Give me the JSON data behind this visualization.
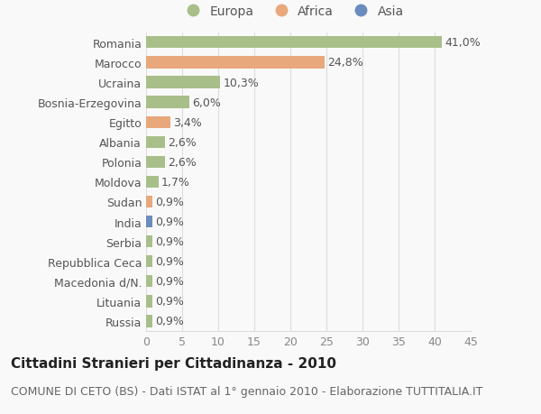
{
  "categories": [
    "Russia",
    "Lituania",
    "Macedonia d/N.",
    "Repubblica Ceca",
    "Serbia",
    "India",
    "Sudan",
    "Moldova",
    "Polonia",
    "Albania",
    "Egitto",
    "Bosnia-Erzegovina",
    "Ucraina",
    "Marocco",
    "Romania"
  ],
  "values": [
    0.9,
    0.9,
    0.9,
    0.9,
    0.9,
    0.9,
    0.9,
    1.7,
    2.6,
    2.6,
    3.4,
    6.0,
    10.3,
    24.8,
    41.0
  ],
  "labels": [
    "0,9%",
    "0,9%",
    "0,9%",
    "0,9%",
    "0,9%",
    "0,9%",
    "0,9%",
    "1,7%",
    "2,6%",
    "2,6%",
    "3,4%",
    "6,0%",
    "10,3%",
    "24,8%",
    "41,0%"
  ],
  "colors": [
    "#a8bf8a",
    "#a8bf8a",
    "#a8bf8a",
    "#a8bf8a",
    "#a8bf8a",
    "#6b8cbe",
    "#e8a87c",
    "#a8bf8a",
    "#a8bf8a",
    "#a8bf8a",
    "#e8a87c",
    "#a8bf8a",
    "#a8bf8a",
    "#e8a87c",
    "#a8bf8a"
  ],
  "legend_labels": [
    "Europa",
    "Africa",
    "Asia"
  ],
  "legend_colors": [
    "#a8bf8a",
    "#e8a87c",
    "#6b8cbe"
  ],
  "title": "Cittadini Stranieri per Cittadinanza - 2010",
  "subtitle": "COMUNE DI CETO (BS) - Dati ISTAT al 1° gennaio 2010 - Elaborazione TUTTITALIA.IT",
  "xlim": [
    0,
    45
  ],
  "xticks": [
    0,
    5,
    10,
    15,
    20,
    25,
    30,
    35,
    40,
    45
  ],
  "background_color": "#f9f9f9",
  "grid_color": "#dddddd",
  "bar_height": 0.6,
  "title_fontsize": 11,
  "subtitle_fontsize": 9,
  "tick_fontsize": 9,
  "label_fontsize": 9,
  "legend_fontsize": 10
}
